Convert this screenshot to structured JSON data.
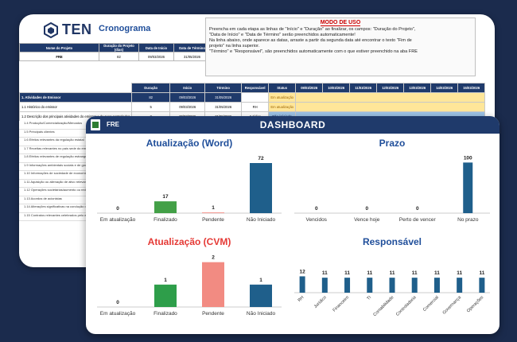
{
  "brand": {
    "name": "TEN",
    "sheet_title": "Cronograma"
  },
  "project_table": {
    "headers": [
      "Nome do Projeto",
      "Duração do Projeto (dias)",
      "Data de Início",
      "Data de Término"
    ],
    "row": [
      "FRE",
      "82",
      "09/03/2026",
      "31/05/2026"
    ]
  },
  "modo_de_uso": {
    "title": "MODO DE USO",
    "lines": [
      "Preencha em cada etapa as linhas de \"Início\" e \"Duração\" ao finalizar, os campos: \"Duração do Projeto\",",
      "\"Data de Início\" e \"Data de Término\" serão preenchidos automaticamente!",
      "Na linha abaixo, onde aparece as datas, arraste a partir da segunda data até encontrar o texto \"Fim de",
      "projeto\" na linha superior.",
      "\"Término\" e \"Responsável\", são preenchidos automaticamente com o que estiver preenchido na aba FRE"
    ]
  },
  "task_table": {
    "headers": [
      "",
      "Duração",
      "Início",
      "Término",
      "Responsável",
      "Status",
      "09/03/2026",
      "10/03/2026",
      "11/03/2026",
      "12/03/2026",
      "13/03/2026",
      "14/03/2026",
      "15/03/2026"
    ],
    "rows": [
      {
        "name": "1. Atividades de Emissor",
        "dur": "82",
        "ini": "09/03/2026",
        "fim": "31/05/2026",
        "resp": "",
        "status": "Em atualização",
        "status_color": "#ffe699"
      },
      {
        "name": "1.1 Histórico do emissor",
        "dur": "5",
        "ini": "09/03/2026",
        "fim": "31/05/2026",
        "resp": "RH",
        "status": "Em atualização",
        "status_color": "#ffe699"
      },
      {
        "name": "1.2 Descrição dos principais atividades do emissor e de suas controladas",
        "dur": "3",
        "ini": "09/03/2026",
        "fim": "31/05/2026",
        "resp": "Jurídico",
        "status": "Não iniciado",
        "status_color": "#9dc3e6"
      },
      {
        "name": "1.3 Informações relacionadas aos segmentos operacionais",
        "dur": "2",
        "ini": "09/03/2026",
        "fim": "31/05/2026",
        "resp": "Financeiro",
        "status": "Pendente",
        "status_color": "#f4b183"
      }
    ]
  },
  "task_list_more": [
    "1.4 Produção/Comercialização/Mercados",
    "1.5 Principais clientes",
    "1.6 Efeitos relevantes da regulação estatal",
    "1.7 Receitas relevantes no país sede do emissor e no exterior",
    "1.8 Efeitos relevantes de regulação estrangeira",
    "1.9 Informações ambientais sociais e de governança corporativa (ASG)",
    "1.10 Informações de sociedade de economia mista",
    "1.11 Aquisição ou alienação de ativo relevante",
    "1.12 Operações societárias/aumento ou redução de capital",
    "1.13 Acordos de acionistas",
    "1.14 Alterações significativas na condução dos negócios",
    "1.15 Contratos relevantes celebrados pelo emissor e suas controladas"
  ],
  "dashboard": {
    "tab": "FRE",
    "title": "DASHBOARD"
  },
  "chart_data": [
    {
      "type": "bar",
      "title": "Atualização (Word)",
      "categories": [
        "Em atualização",
        "Finalizado",
        "Pendente",
        "Não Iniciado"
      ],
      "values": [
        0,
        17,
        1,
        72
      ],
      "colors": [
        "#9e9e9e",
        "#43a047",
        "#f28b82",
        "#1f5f8b"
      ],
      "ylim": [
        0,
        80
      ]
    },
    {
      "type": "bar",
      "title": "Prazo",
      "categories": [
        "Vencidos",
        "Vence hoje",
        "Perto de vencer",
        "No prazo"
      ],
      "values": [
        0,
        0,
        0,
        100
      ],
      "colors": [
        "#1f5f8b",
        "#1f5f8b",
        "#1f5f8b",
        "#1f5f8b"
      ],
      "ylim": [
        0,
        110
      ]
    },
    {
      "type": "bar",
      "title": "Atualização (CVM)",
      "categories": [
        "Em atualização",
        "Finalizado",
        "Pendente",
        "Não Iniciado"
      ],
      "values": [
        0,
        1,
        2,
        1
      ],
      "colors": [
        "#9e9e9e",
        "#2e9e4a",
        "#f28b82",
        "#1f5f8b"
      ],
      "ylim": [
        0,
        2.2
      ]
    },
    {
      "type": "bar",
      "title": "Responsável",
      "categories": [
        "RH",
        "Jurídico",
        "Financeiro",
        "TI",
        "Contabilidade",
        "Controladoria",
        "Comercial",
        "Governança",
        "Operações"
      ],
      "values": [
        12,
        11,
        11,
        11,
        11,
        11,
        11,
        11,
        11
      ],
      "colors": [
        "#1f5f8b"
      ],
      "ylim": [
        0,
        14
      ]
    }
  ],
  "colors": {
    "navy": "#1f3a6b",
    "title_blue": "#1f4e9a",
    "title_red": "#e53935",
    "background": "#1b2b4d"
  }
}
